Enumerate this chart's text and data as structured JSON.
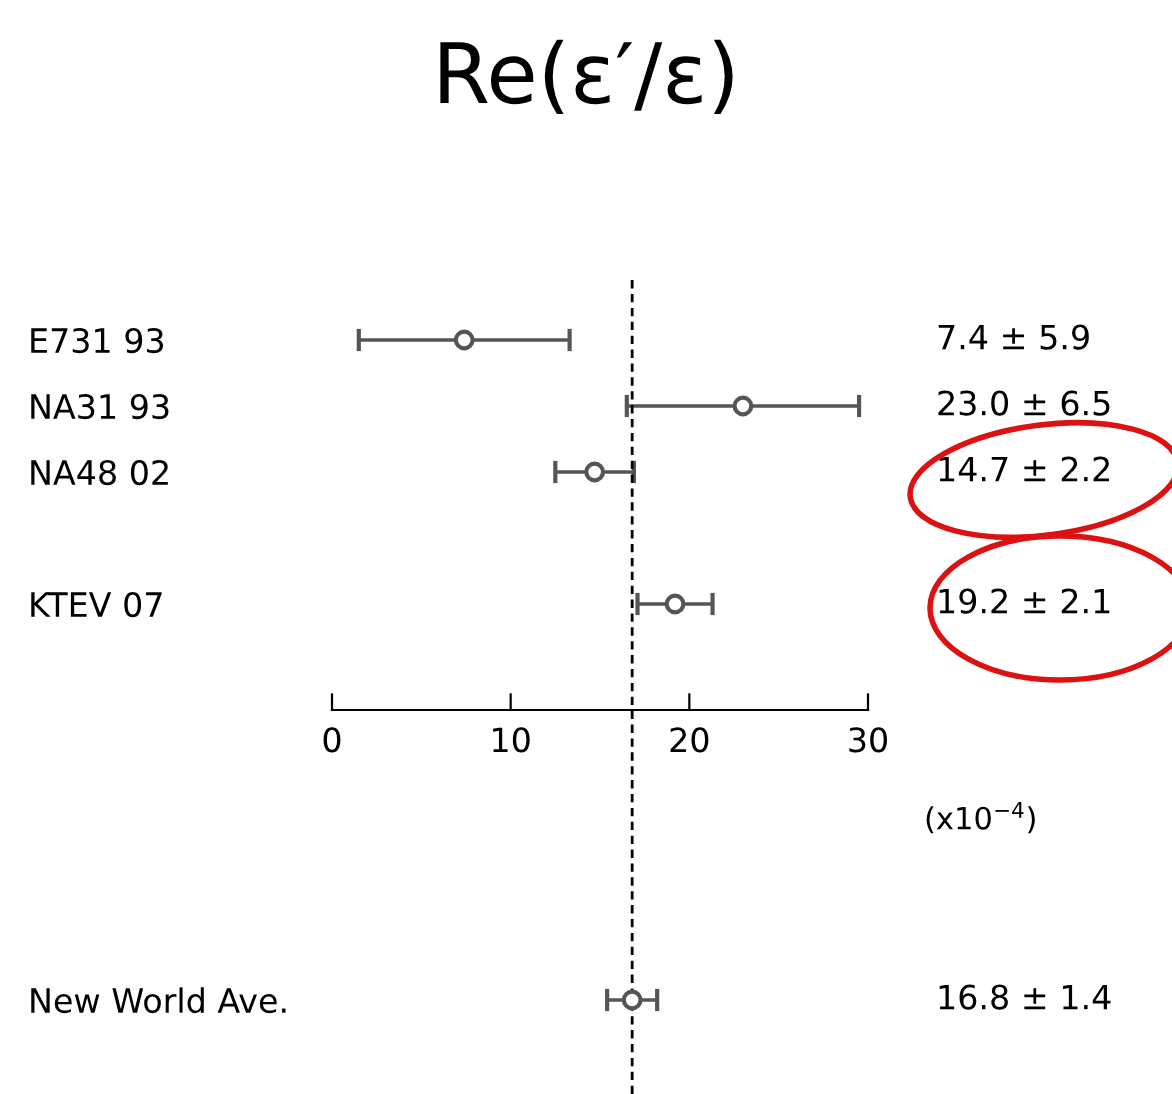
{
  "chart_data": {
    "type": "scatter",
    "orientation": "horizontal",
    "title": "Re(ε′/ε)",
    "xlabel": "(x10$^{−4}$)",
    "categories": [
      "E731 93",
      "NA31 93",
      "NA48 02",
      null,
      "KTEV 07",
      null,
      null,
      null,
      null,
      null,
      "New World Ave."
    ],
    "values": [
      7.4,
      23.0,
      14.7,
      null,
      19.2,
      null,
      null,
      null,
      null,
      null,
      16.8
    ],
    "errors": [
      5.9,
      6.5,
      2.2,
      null,
      2.1,
      null,
      null,
      null,
      null,
      null,
      1.4
    ],
    "annotations": [
      "7.4 ± 5.9",
      "23.0 ± 6.5",
      "14.7 ± 2.2",
      "19.2 ± 2.1",
      "16.8 ± 1.4"
    ],
    "color": "#555555",
    "marker": "circle",
    "xlim": [
      0,
      30
    ],
    "xticks": [
      0,
      10,
      20,
      30
    ],
    "ref_lines": [
      {
        "axis": "x",
        "value": 16.8,
        "line_style": "dashed",
        "color": "#000000"
      }
    ],
    "grid": false,
    "legend": false
  }
}
